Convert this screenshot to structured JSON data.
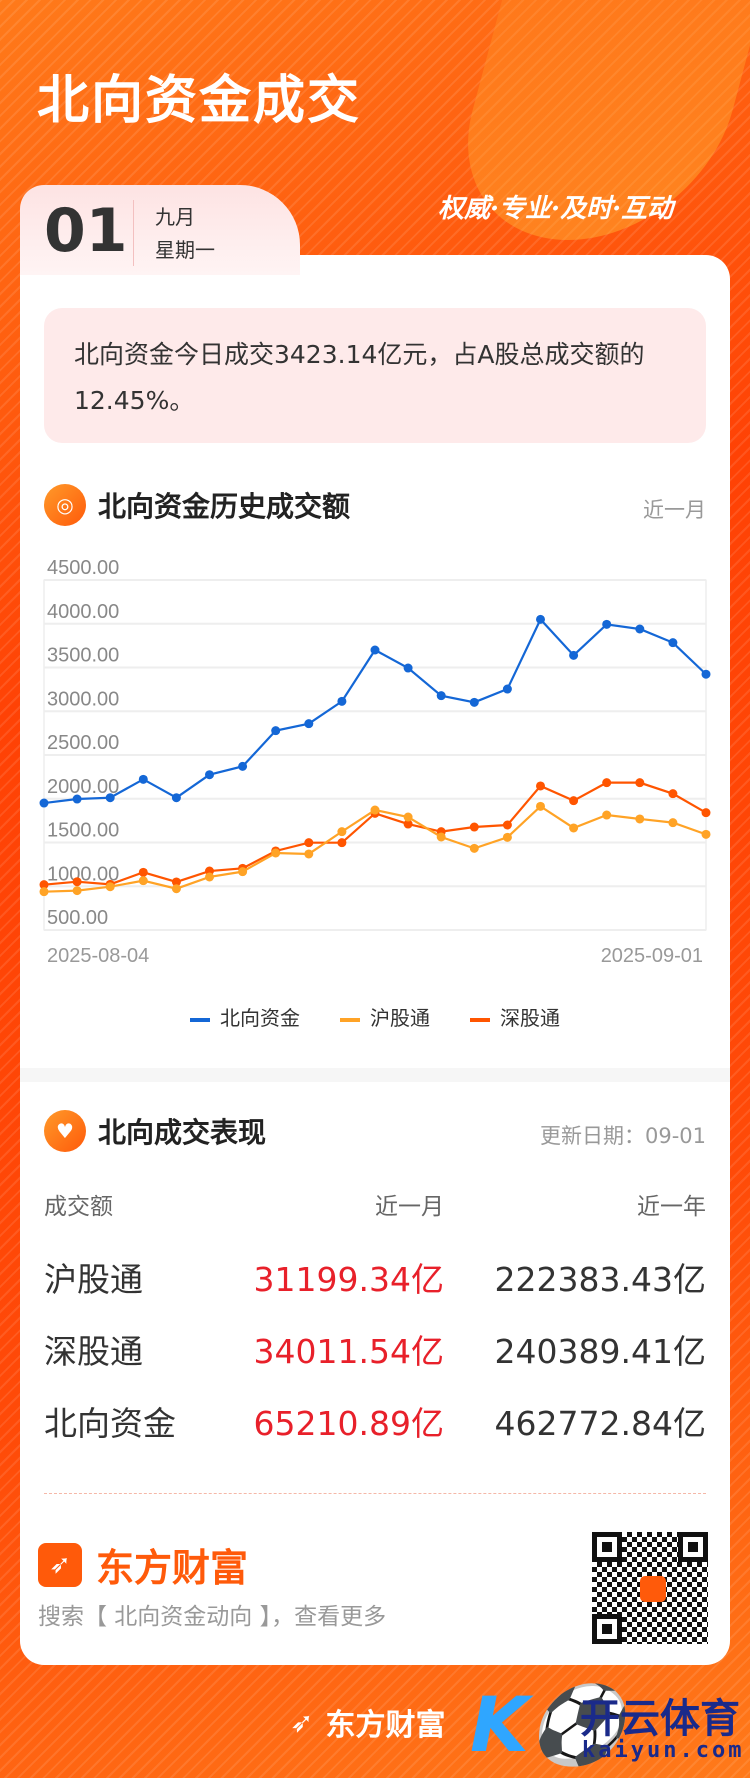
{
  "header": {
    "title": "北向资金成交",
    "slogan": "权威·专业·及时·互动",
    "day": "01",
    "month": "九月",
    "weekday": "星期一"
  },
  "summary": {
    "text": "北向资金今日成交3423.14亿元，占A股总成交额的12.45%。"
  },
  "history": {
    "title": "北向资金历史成交额",
    "range": "近一月",
    "icon": "coin-icon"
  },
  "chart_data": {
    "type": "line",
    "x": [
      "2025-08-04",
      "2025-08-05",
      "2025-08-06",
      "2025-08-07",
      "2025-08-08",
      "2025-08-11",
      "2025-08-12",
      "2025-08-13",
      "2025-08-14",
      "2025-08-15",
      "2025-08-18",
      "2025-08-19",
      "2025-08-20",
      "2025-08-21",
      "2025-08-22",
      "2025-08-25",
      "2025-08-26",
      "2025-08-27",
      "2025-08-28",
      "2025-08-29",
      "2025-09-01"
    ],
    "x_tick_labels": [
      "2025-08-04",
      "2025-09-01"
    ],
    "y_tick_labels": [
      "500.00",
      "1000.00",
      "1500.00",
      "2000.00",
      "2500.00",
      "3000.00",
      "3500.00",
      "4000.00",
      "4500.00"
    ],
    "ylim": [
      500,
      4500
    ],
    "grid": true,
    "legend": "bottom",
    "series": [
      {
        "name": "北向资金",
        "color": "#1467d6",
        "values": [
          1951,
          1997,
          2012,
          2222,
          2012,
          2275,
          2370,
          2778,
          2858,
          3113,
          3700,
          3494,
          3178,
          3102,
          3254,
          4050,
          3639,
          3993,
          3940,
          3784,
          3423
        ]
      },
      {
        "name": "沪股通",
        "color": "#ffa326",
        "values": [
          938,
          950,
          995,
          1064,
          972,
          1106,
          1167,
          1380,
          1369,
          1624,
          1871,
          1791,
          1563,
          1433,
          1559,
          1913,
          1666,
          1814,
          1769,
          1727,
          1593
        ]
      },
      {
        "name": "深股通",
        "color": "#ff5500",
        "values": [
          1018,
          1052,
          1022,
          1159,
          1049,
          1174,
          1205,
          1403,
          1498,
          1498,
          1833,
          1711,
          1624,
          1677,
          1700,
          2146,
          1978,
          2184,
          2184,
          2058,
          1841
        ]
      }
    ]
  },
  "performance": {
    "title": "北向成交表现",
    "updated": "更新日期：09-01",
    "icon": "handshake-icon",
    "columns": [
      "成交额",
      "近一月",
      "近一年"
    ],
    "rows": [
      {
        "name": "沪股通",
        "month": "31199.34亿",
        "year": "222383.43亿"
      },
      {
        "name": "深股通",
        "month": "34011.54亿",
        "year": "240389.41亿"
      },
      {
        "name": "北向资金",
        "month": "65210.89亿",
        "year": "462772.84亿"
      }
    ]
  },
  "promo": {
    "brand": "东方财富",
    "search": "搜索【 北向资金动向 】，查看更多"
  },
  "footer": {
    "brand": "东方财富",
    "partner_cn": "开云体育",
    "partner_en": "kaiyun.com"
  }
}
